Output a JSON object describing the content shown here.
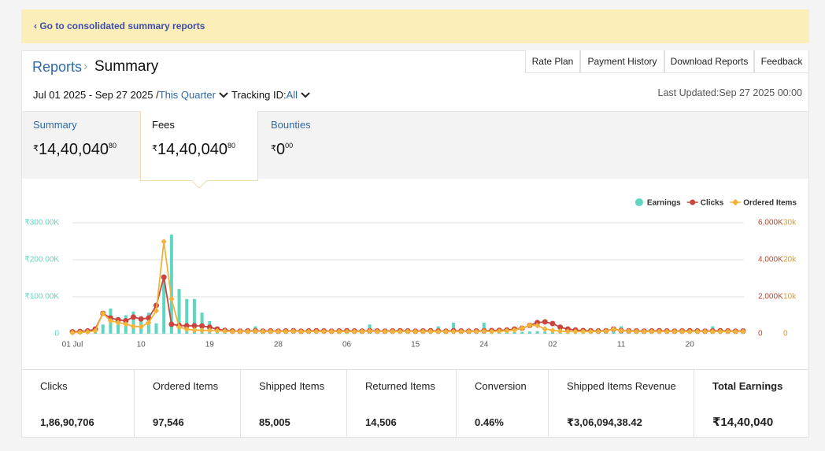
{
  "banner": {
    "link": "‹ Go to consolidated summary reports"
  },
  "header": {
    "breadcrumb": "Reports",
    "separator": "›",
    "title": "Summary"
  },
  "nav": [
    "Rate Plan",
    "Payment History",
    "Download Reports",
    "Feedback"
  ],
  "filters": {
    "date_range": "Jul 01 2025 - Sep 27 2025 /",
    "period": "This Quarter",
    "tracking_label": "Tracking ID:",
    "tracking_value": "All",
    "last_updated_label": "Last Updated:",
    "last_updated": "Sep 27 2025 00:00"
  },
  "tabs": [
    {
      "label": "Summary",
      "currency": "₹",
      "whole": "14,40,040",
      "fraction": "80"
    },
    {
      "label": "Fees",
      "currency": "₹",
      "whole": "14,40,040",
      "fraction": "80"
    },
    {
      "label": "Bounties",
      "currency": "₹",
      "whole": "0",
      "fraction": "00"
    }
  ],
  "chart_data": {
    "type": "combo",
    "legend": "top-right",
    "grid": true,
    "categories": [
      "01 Jul",
      null,
      null,
      null,
      null,
      null,
      null,
      null,
      null,
      "10",
      null,
      null,
      null,
      null,
      null,
      null,
      null,
      null,
      "19",
      null,
      null,
      null,
      null,
      null,
      null,
      null,
      null,
      "28",
      null,
      null,
      null,
      null,
      null,
      null,
      null,
      null,
      "06",
      null,
      null,
      null,
      null,
      null,
      null,
      null,
      null,
      "15",
      null,
      null,
      null,
      null,
      null,
      null,
      null,
      null,
      "24",
      null,
      null,
      null,
      null,
      null,
      null,
      null,
      null,
      "02",
      null,
      null,
      null,
      null,
      null,
      null,
      null,
      null,
      "11",
      null,
      null,
      null,
      null,
      null,
      null,
      null,
      null,
      "20",
      null,
      null,
      null,
      null,
      null,
      null,
      null
    ],
    "ylim": [
      0,
      300000
    ],
    "yticks": [
      0,
      {
        "value": 100000,
        "label": "₹100.00K"
      },
      {
        "value": 200000,
        "label": "₹200.00K"
      },
      {
        "value": 300000,
        "label": "₹300.00K"
      }
    ],
    "y2lim": [
      0,
      6000000
    ],
    "y2ticks": [
      0,
      {
        "value": 2000000,
        "label": "2,000K"
      },
      {
        "value": 4000000,
        "label": "4,000K"
      },
      {
        "value": 6000000,
        "label": "6,000K"
      }
    ],
    "y3lim": [
      0,
      30000
    ],
    "y3ticks": [
      0,
      {
        "value": 10000,
        "label": "10k"
      },
      {
        "value": 20000,
        "label": "20k"
      },
      {
        "value": 30000,
        "label": "30k"
      }
    ],
    "series": [
      {
        "name": "Earnings",
        "color": "#5ed6c1",
        "kind": "bar",
        "axis": "y",
        "values": [
          2000,
          2000,
          3000,
          4000,
          25000,
          68000,
          45000,
          50000,
          60000,
          40000,
          57000,
          28000,
          147000,
          268000,
          121000,
          94000,
          94000,
          57000,
          34000,
          10000,
          8000,
          6000,
          5000,
          5000,
          20000,
          4000,
          5000,
          4000,
          5000,
          4000,
          5000,
          4000,
          5000,
          4000,
          5000,
          4000,
          5000,
          4000,
          5000,
          25000,
          4000,
          5000,
          4000,
          5000,
          4000,
          5000,
          4000,
          5000,
          20000,
          5000,
          30000,
          5000,
          4000,
          5000,
          30000,
          5000,
          4000,
          5000,
          4000,
          5000,
          6000,
          7000,
          6000,
          5000,
          5000,
          4000,
          5000,
          4000,
          5000,
          4000,
          5000,
          6000,
          20000,
          5000,
          4000,
          5000,
          4000,
          5000,
          4000,
          5000,
          4000,
          5000,
          4000,
          5000,
          20000,
          5000,
          4000,
          5000,
          4000
        ]
      },
      {
        "name": "Clicks",
        "color": "#c9453e",
        "kind": "line",
        "marker": "circle",
        "axis": "y2",
        "values": [
          100000,
          120000,
          150000,
          250000,
          1100000,
          850000,
          750000,
          700000,
          900000,
          800000,
          850000,
          1530000,
          3060000,
          510000,
          450000,
          430000,
          430000,
          420000,
          350000,
          250000,
          180000,
          150000,
          140000,
          150000,
          160000,
          140000,
          150000,
          140000,
          150000,
          160000,
          140000,
          150000,
          160000,
          150000,
          140000,
          150000,
          160000,
          150000,
          140000,
          160000,
          150000,
          140000,
          150000,
          160000,
          150000,
          140000,
          150000,
          160000,
          150000,
          140000,
          160000,
          150000,
          140000,
          150000,
          160000,
          170000,
          180000,
          200000,
          250000,
          300000,
          450000,
          600000,
          640000,
          550000,
          350000,
          250000,
          200000,
          170000,
          160000,
          150000,
          160000,
          250000,
          170000,
          160000,
          150000,
          140000,
          150000,
          160000,
          150000,
          140000,
          150000,
          160000,
          150000,
          140000,
          150000,
          160000,
          150000,
          140000,
          150000
        ]
      },
      {
        "name": "Ordered Items",
        "color": "#f0b43c",
        "kind": "line",
        "marker": "diamond",
        "axis": "y3",
        "values": [
          300,
          400,
          500,
          800,
          5500,
          3500,
          3000,
          2600,
          2000,
          1900,
          3000,
          6200,
          24900,
          9400,
          1800,
          1200,
          1000,
          900,
          900,
          800,
          700,
          600,
          600,
          600,
          700,
          600,
          600,
          600,
          600,
          700,
          600,
          600,
          600,
          600,
          600,
          600,
          600,
          600,
          600,
          700,
          600,
          600,
          600,
          600,
          600,
          600,
          600,
          600,
          600,
          600,
          600,
          600,
          600,
          600,
          700,
          600,
          700,
          800,
          1000,
          1500,
          2300,
          2200,
          1300,
          900,
          700,
          600,
          600,
          600,
          600,
          600,
          700,
          1200,
          800,
          700,
          600,
          600,
          600,
          600,
          600,
          600,
          600,
          600,
          600,
          600,
          600,
          600,
          600,
          600,
          600
        ]
      }
    ]
  },
  "stats": [
    {
      "label": "Clicks",
      "value": "1,86,90,706"
    },
    {
      "label": "Ordered Items",
      "value": "97,546"
    },
    {
      "label": "Shipped Items",
      "value": "85,005"
    },
    {
      "label": "Returned Items",
      "value": "14,506"
    },
    {
      "label": "Conversion",
      "value": "0.46%"
    },
    {
      "label": "Shipped Items Revenue",
      "value": "₹3,06,094,38.42"
    },
    {
      "label": "Total Earnings",
      "value": "₹14,40,040"
    }
  ]
}
